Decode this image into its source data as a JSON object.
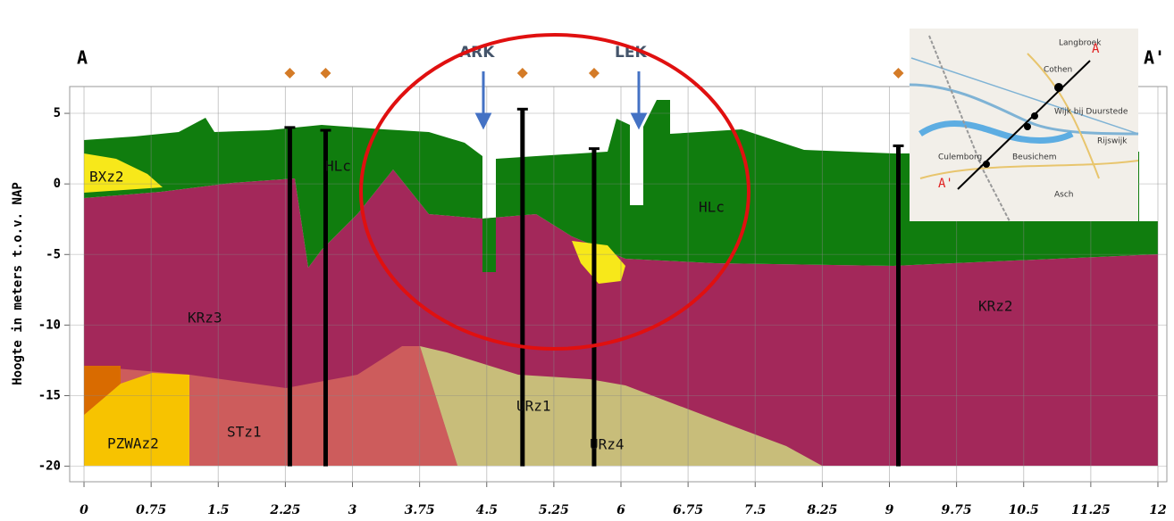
{
  "chart_data": {
    "type": "cross-section",
    "y_label": "Hoogte in meters t.o.v. NAP",
    "section_labels": [
      "A",
      "A'"
    ],
    "rivers": [
      "ARK",
      "LEK"
    ],
    "layers": [
      "BXz2",
      "HLc",
      "HLc",
      "KRz3",
      "KRz2",
      "PZWAz2",
      "STz1",
      "URz1",
      "URz4"
    ],
    "map_labels": [
      "Langbroek",
      "Cothen",
      "Wijk bij Duurstede",
      "Rijswijk",
      "Culemborg",
      "Beusichem",
      "Asch",
      "A",
      "A'"
    ],
    "boreholes": {
      "x": [
        2.3,
        2.7,
        4.9,
        5.7,
        9.1
      ],
      "top": [
        4,
        3.8,
        5.3,
        2.5,
        2.7
      ],
      "color": "#000000",
      "marker_color": "#d47b27"
    },
    "xlim": [
      -0.16,
      12.1
    ],
    "ylim": [
      -21.1,
      6.9
    ],
    "xticks": [
      0,
      0.75,
      1.5,
      2.25,
      3,
      3.75,
      4.5,
      5.25,
      6,
      6.75,
      7.5,
      8.25,
      9,
      9.75,
      10.5,
      11.25,
      12
    ],
    "yticks": [
      5,
      0,
      -5,
      -10,
      -15,
      -20
    ],
    "grid": true
  }
}
